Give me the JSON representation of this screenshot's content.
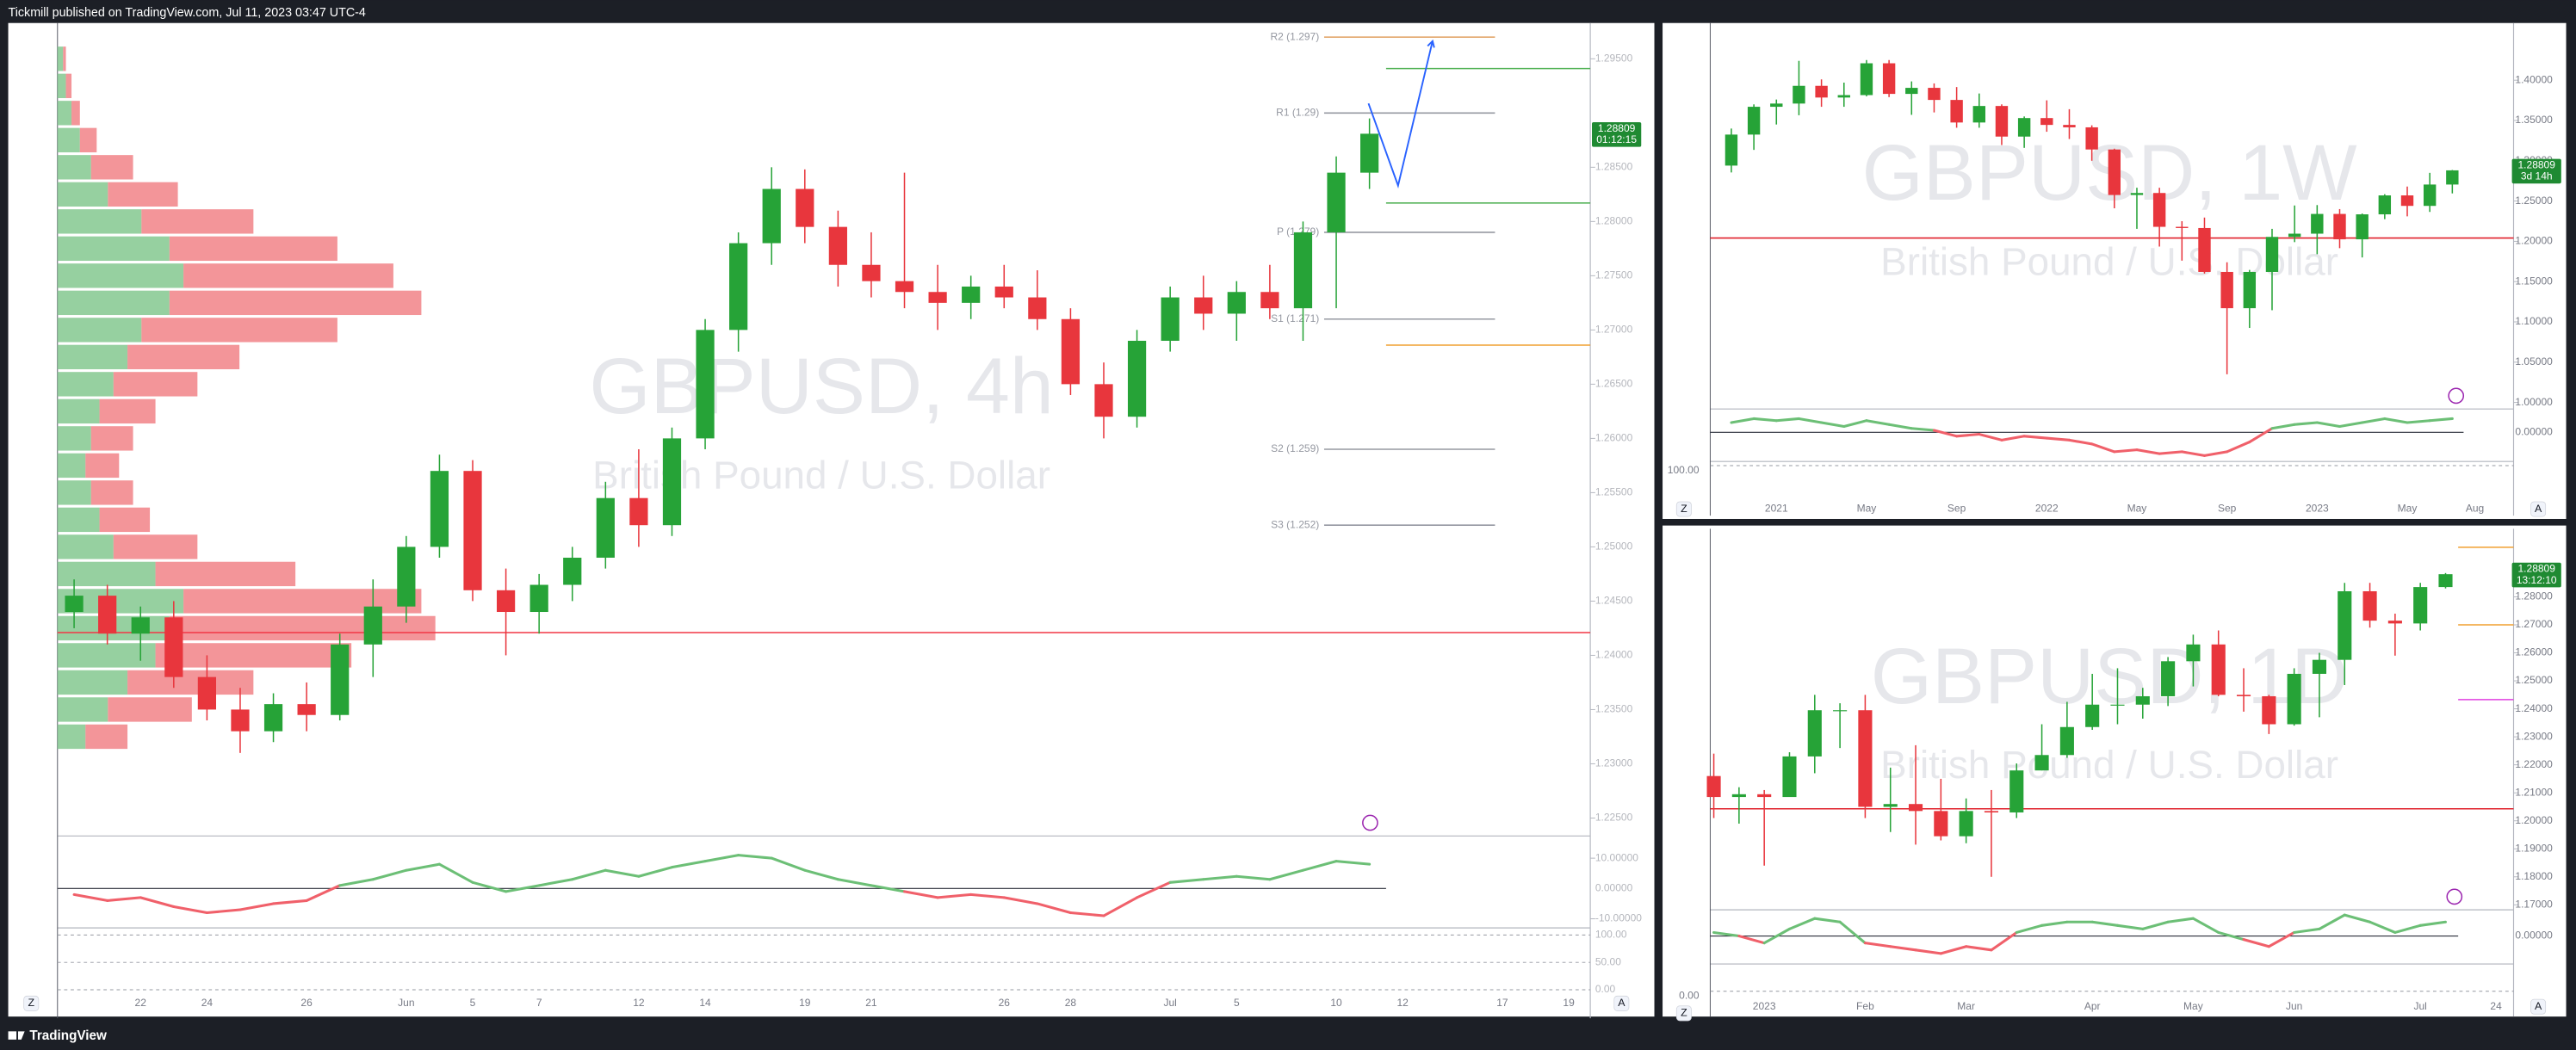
{
  "header": {
    "text": "Tickmill published on TradingView.com, Jul 11, 2023 03:47 UTC-4"
  },
  "footer": {
    "brand": "TradingView"
  },
  "chart_data": [
    {
      "type": "candlestick",
      "title": "GBPUSD, 4h",
      "subtitle": "British Pound / U.S. Dollar",
      "categories": [
        null,
        null,
        "22",
        null,
        "24",
        null,
        null,
        "26",
        null,
        null,
        "Jun",
        null,
        "5",
        null,
        "7",
        null,
        null,
        "12",
        null,
        "14",
        null,
        null,
        "19",
        null,
        "21",
        null,
        null,
        null,
        "26",
        null,
        "28",
        null,
        null,
        "Jul",
        null,
        "5",
        null,
        null,
        "10",
        null,
        "12",
        null,
        null,
        "17",
        null,
        "19"
      ],
      "open": [
        1.244,
        1.2455,
        1.242,
        1.2435,
        1.238,
        1.235,
        1.233,
        1.2355,
        1.2345,
        1.241,
        1.2445,
        1.25,
        1.257,
        1.246,
        1.244,
        1.2465,
        1.249,
        1.2545,
        1.252,
        1.26,
        1.27,
        1.278,
        1.283,
        1.2795,
        1.276,
        1.2745,
        1.2735,
        1.2725,
        1.274,
        1.273,
        1.271,
        1.265,
        1.262,
        1.269,
        1.273,
        1.2715,
        1.2735,
        1.272,
        1.279,
        1.2845,
        null,
        null,
        null,
        null,
        null,
        null
      ],
      "high": [
        1.247,
        1.2465,
        1.2445,
        1.245,
        1.24,
        1.237,
        1.2365,
        1.2375,
        1.242,
        1.247,
        1.251,
        1.2585,
        1.258,
        1.248,
        1.2475,
        1.25,
        1.256,
        1.259,
        1.261,
        1.271,
        1.279,
        1.285,
        1.2848,
        1.281,
        1.279,
        1.2845,
        1.276,
        1.275,
        1.276,
        1.2755,
        1.272,
        1.267,
        1.27,
        1.274,
        1.275,
        1.2745,
        1.276,
        1.28,
        1.286,
        1.2895,
        null,
        null,
        null,
        null,
        null,
        null
      ],
      "low": [
        1.2425,
        1.241,
        1.2395,
        1.237,
        1.234,
        1.231,
        1.232,
        1.233,
        1.234,
        1.238,
        1.243,
        1.249,
        1.245,
        1.24,
        1.242,
        1.245,
        1.248,
        1.25,
        1.251,
        1.259,
        1.268,
        1.276,
        1.278,
        1.274,
        1.273,
        1.272,
        1.27,
        1.271,
        1.272,
        1.27,
        1.264,
        1.26,
        1.261,
        1.268,
        1.27,
        1.269,
        1.271,
        1.269,
        1.272,
        1.283,
        null,
        null,
        null,
        null,
        null,
        null
      ],
      "close": [
        1.2455,
        1.242,
        1.2435,
        1.238,
        1.235,
        1.233,
        1.2355,
        1.2345,
        1.241,
        1.2445,
        1.25,
        1.257,
        1.246,
        1.244,
        1.2465,
        1.249,
        1.2545,
        1.252,
        1.26,
        1.27,
        1.278,
        1.283,
        1.2795,
        1.276,
        1.2745,
        1.2735,
        1.2725,
        1.274,
        1.273,
        1.271,
        1.265,
        1.262,
        1.269,
        1.273,
        1.2715,
        1.2735,
        1.272,
        1.279,
        1.2845,
        1.28809,
        null,
        null,
        null,
        null,
        null,
        null
      ],
      "up_color": "#26a337",
      "down_color": "#e8363d",
      "last_price_color": "#1f8a32",
      "countdown": "01:12:15",
      "ylim": [
        1.2235,
        1.2983
      ],
      "yticks": [
        {
          "value": 1.225,
          "label": "1.22500"
        },
        {
          "value": 1.23,
          "label": "1.23000"
        },
        {
          "value": 1.235,
          "label": "1.23500"
        },
        {
          "value": 1.24,
          "label": "1.24000"
        },
        {
          "value": 1.245,
          "label": "1.24500"
        },
        {
          "value": 1.25,
          "label": "1.25000"
        },
        {
          "value": 1.255,
          "label": "1.25500"
        },
        {
          "value": 1.26,
          "label": "1.26000"
        },
        {
          "value": 1.265,
          "label": "1.26500"
        },
        {
          "value": 1.27,
          "label": "1.27000"
        },
        {
          "value": 1.275,
          "label": "1.27500"
        },
        {
          "value": 1.28,
          "label": "1.28000"
        },
        {
          "value": 1.285,
          "label": "1.28500"
        },
        {
          "value": 1.295,
          "label": "1.29500"
        }
      ],
      "pivots": [
        {
          "label": "R2 (1.297)",
          "value": 1.297,
          "color": "#e0a060"
        },
        {
          "label": "R1 (1.29)",
          "value": 1.29,
          "color": "#9598a1"
        },
        {
          "label": "P (1.279)",
          "value": 1.279,
          "color": "#9598a1"
        },
        {
          "label": "S1 (1.271)",
          "value": 1.271,
          "color": "#9598a1"
        },
        {
          "label": "S2 (1.259)",
          "value": 1.259,
          "color": "#9598a1"
        },
        {
          "label": "S3 (1.252)",
          "value": 1.252,
          "color": "#9598a1"
        }
      ],
      "hlines": [
        {
          "value": 1.2421,
          "color": "#f23645",
          "span": "full"
        },
        {
          "value": 1.2941,
          "color": "#4caf50",
          "span": "right"
        },
        {
          "value": 1.2817,
          "color": "#4caf50",
          "span": "right"
        },
        {
          "value": 1.2686,
          "color": "#f0a030",
          "span": "right"
        }
      ],
      "volume_profile": {
        "prices": [
          1.295,
          1.2925,
          1.29,
          1.2875,
          1.285,
          1.2825,
          1.28,
          1.2775,
          1.275,
          1.2725,
          1.27,
          1.2675,
          1.265,
          1.2625,
          1.26,
          1.2575,
          1.255,
          1.2525,
          1.25,
          1.2475,
          1.245,
          1.2425,
          1.24,
          1.2375,
          1.235,
          1.2325
        ],
        "up": [
          2,
          3,
          5,
          8,
          12,
          18,
          30,
          40,
          45,
          40,
          30,
          25,
          20,
          15,
          12,
          10,
          12,
          15,
          20,
          35,
          45,
          40,
          35,
          25,
          18,
          10
        ],
        "down": [
          1,
          2,
          3,
          6,
          15,
          25,
          40,
          60,
          75,
          90,
          70,
          40,
          30,
          20,
          15,
          12,
          15,
          18,
          30,
          50,
          85,
          95,
          70,
          45,
          30,
          15
        ],
        "up_color": "#7cc488",
        "down_color": "#f07a7f"
      },
      "momentum": {
        "values": [
          -2,
          -4,
          -3,
          -6,
          -8,
          -7,
          -5,
          -4,
          1,
          3,
          6,
          8,
          2,
          -1,
          1,
          3,
          6,
          4,
          7,
          9,
          11,
          10,
          6,
          3,
          1,
          -1,
          -3,
          -2,
          -3,
          -5,
          -8,
          -9,
          -3,
          2,
          3,
          4,
          3,
          6,
          9,
          8,
          null,
          null,
          null,
          null,
          null,
          null
        ],
        "ylim": [
          -13,
          16.8
        ],
        "yticks": [
          {
            "value": 10,
            "label": "10.00000"
          },
          {
            "value": 0,
            "label": "0.00000"
          },
          {
            "value": -10,
            "label": "-10.00000"
          }
        ],
        "up_color": "#6cbf76",
        "down_color": "#f0606a"
      },
      "stoch_ylim": [
        -10,
        110
      ],
      "stoch_ticks": [
        {
          "value": 100,
          "label": "100.00"
        },
        {
          "value": 50,
          "label": "50.00"
        },
        {
          "value": 0,
          "label": "0.00"
        }
      ],
      "buttons": [
        "Z",
        "A"
      ]
    },
    {
      "type": "candlestick",
      "title": "GBPUSD, 1W",
      "subtitle": "British Pound / U.S. Dollar",
      "categories": [
        null,
        null,
        "2021",
        null,
        null,
        null,
        "May",
        null,
        null,
        null,
        "Sep",
        null,
        null,
        null,
        "2022",
        null,
        null,
        null,
        "May",
        null,
        null,
        null,
        "Sep",
        null,
        null,
        null,
        "2023",
        null,
        null,
        null,
        "May",
        null,
        null,
        "Aug",
        null
      ],
      "open": [
        1.294,
        1.3325,
        1.367,
        1.371,
        1.393,
        1.3785,
        1.3815,
        1.421,
        1.383,
        1.3905,
        1.3755,
        1.3475,
        1.368,
        1.33,
        1.353,
        1.3445,
        1.3415,
        1.314,
        1.2575,
        1.26,
        1.218,
        1.2165,
        1.162,
        1.117,
        1.162,
        1.2055,
        1.2095,
        1.234,
        1.2025,
        1.2335,
        1.257,
        1.244,
        1.2705,
        null,
        null
      ],
      "high": [
        1.34,
        1.37,
        1.376,
        1.424,
        1.401,
        1.397,
        1.425,
        1.425,
        1.3985,
        1.396,
        1.3915,
        1.3835,
        1.37,
        1.355,
        1.375,
        1.364,
        1.344,
        1.315,
        1.2665,
        1.2665,
        1.225,
        1.2295,
        1.174,
        1.1645,
        1.2155,
        1.2445,
        1.245,
        1.24,
        1.2345,
        1.2585,
        1.268,
        1.285,
        1.2885,
        null,
        null
      ],
      "low": [
        1.2855,
        1.3135,
        1.345,
        1.3565,
        1.367,
        1.367,
        1.38,
        1.379,
        1.357,
        1.36,
        1.341,
        1.341,
        1.3195,
        1.316,
        1.336,
        1.327,
        1.3,
        1.241,
        1.2155,
        1.1935,
        1.176,
        1.16,
        1.035,
        1.0925,
        1.1145,
        1.199,
        1.184,
        1.1915,
        1.18,
        1.2275,
        1.231,
        1.2365,
        1.2595,
        null,
        null
      ],
      "close": [
        1.3325,
        1.367,
        1.371,
        1.393,
        1.3785,
        1.3815,
        1.421,
        1.383,
        1.3905,
        1.3755,
        1.3475,
        1.368,
        1.33,
        1.353,
        1.3445,
        1.3415,
        1.314,
        1.2575,
        1.26,
        1.218,
        1.2165,
        1.162,
        1.117,
        1.162,
        1.2055,
        1.2095,
        1.234,
        1.2025,
        1.2335,
        1.257,
        1.244,
        1.2705,
        1.28809,
        null,
        null
      ],
      "up_color": "#26a337",
      "down_color": "#e8363d",
      "last_price_color": "#1f8a32",
      "countdown": "3d 14h",
      "ylim": [
        0.994,
        1.471
      ],
      "yticks": [
        {
          "value": 1.0,
          "label": "1.00000"
        },
        {
          "value": 1.05,
          "label": "1.05000"
        },
        {
          "value": 1.1,
          "label": "1.10000"
        },
        {
          "value": 1.15,
          "label": "1.15000"
        },
        {
          "value": 1.2,
          "label": "1.20000"
        },
        {
          "value": 1.25,
          "label": "1.25000"
        },
        {
          "value": 1.3,
          "label": "1.30000"
        },
        {
          "value": 1.35,
          "label": "1.35000"
        },
        {
          "value": 1.4,
          "label": "1.40000"
        }
      ],
      "hlines": [
        {
          "value": 1.2041,
          "color": "#e0202a",
          "span": "full"
        }
      ],
      "momentum": {
        "values": [
          0.05,
          0.07,
          0.06,
          0.07,
          0.05,
          0.03,
          0.06,
          0.04,
          0.02,
          0.01,
          -0.02,
          -0.01,
          -0.04,
          -0.02,
          -0.03,
          -0.04,
          -0.06,
          -0.1,
          -0.09,
          -0.11,
          -0.1,
          -0.12,
          -0.1,
          -0.05,
          0.02,
          0.04,
          0.05,
          0.03,
          0.05,
          0.07,
          0.05,
          0.06,
          0.07,
          null,
          null
        ],
        "ylim": [
          -0.15,
          0.12
        ],
        "yticks": [
          {
            "value": 0,
            "label": "0.00000"
          }
        ],
        "up_color": "#6cbf76",
        "down_color": "#f0606a"
      },
      "stoch_ylim": [
        -10,
        110
      ],
      "stoch_ticks": [
        {
          "value": 100,
          "label": "100.00"
        }
      ],
      "buttons": [
        "Z",
        "A"
      ]
    },
    {
      "type": "candlestick",
      "title": "GBPUSD, 1D",
      "subtitle": "British Pound / U.S. Dollar",
      "categories": [
        null,
        null,
        "2023",
        null,
        null,
        null,
        "Feb",
        null,
        null,
        null,
        "Mar",
        null,
        null,
        null,
        null,
        "Apr",
        null,
        null,
        null,
        "May",
        null,
        null,
        null,
        "Jun",
        null,
        null,
        null,
        null,
        "Jul",
        null,
        null,
        "24"
      ],
      "open": [
        1.216,
        1.2085,
        1.2095,
        1.2085,
        1.223,
        1.2395,
        1.2395,
        1.205,
        1.206,
        1.2035,
        1.1945,
        1.2035,
        1.203,
        1.218,
        1.2235,
        1.2335,
        1.2415,
        1.2415,
        1.2445,
        1.257,
        1.263,
        1.245,
        1.2445,
        1.2345,
        1.2525,
        1.2575,
        1.282,
        1.2715,
        1.2705,
        1.2835,
        null,
        null
      ],
      "high": [
        1.224,
        1.212,
        1.211,
        1.2245,
        1.245,
        1.242,
        1.245,
        1.219,
        1.227,
        1.215,
        1.208,
        1.211,
        1.2205,
        1.2345,
        1.2425,
        1.2525,
        1.2545,
        1.2475,
        1.2585,
        1.2665,
        1.268,
        1.2545,
        1.245,
        1.2545,
        1.26,
        1.285,
        1.285,
        1.274,
        1.285,
        1.2885,
        null,
        null
      ],
      "low": [
        1.201,
        1.199,
        1.184,
        1.209,
        1.217,
        1.226,
        1.201,
        1.196,
        1.1915,
        1.193,
        1.192,
        1.18,
        1.201,
        1.218,
        1.2225,
        1.2325,
        1.2345,
        1.2365,
        1.241,
        1.248,
        1.2445,
        1.239,
        1.231,
        1.234,
        1.237,
        1.2485,
        1.269,
        1.259,
        1.268,
        1.283,
        null,
        null
      ],
      "close": [
        1.2085,
        1.2095,
        1.2085,
        1.223,
        1.2395,
        1.2395,
        1.205,
        1.206,
        1.2035,
        1.1945,
        1.2035,
        1.203,
        1.218,
        1.2235,
        1.2335,
        1.2415,
        1.2415,
        1.2445,
        1.257,
        1.263,
        1.245,
        1.2445,
        1.2345,
        1.2525,
        1.2575,
        1.282,
        1.2715,
        1.2705,
        1.2835,
        1.28809,
        null,
        null
      ],
      "up_color": "#26a337",
      "down_color": "#e8363d",
      "last_price_color": "#1f8a32",
      "countdown": "13:12:10",
      "ylim": [
        1.1688,
        1.3043
      ],
      "yticks": [
        {
          "value": 1.17,
          "label": "1.17000"
        },
        {
          "value": 1.18,
          "label": "1.18000"
        },
        {
          "value": 1.19,
          "label": "1.19000"
        },
        {
          "value": 1.2,
          "label": "1.20000"
        },
        {
          "value": 1.21,
          "label": "1.21000"
        },
        {
          "value": 1.22,
          "label": "1.22000"
        },
        {
          "value": 1.23,
          "label": "1.23000"
        },
        {
          "value": 1.24,
          "label": "1.24000"
        },
        {
          "value": 1.25,
          "label": "1.25000"
        },
        {
          "value": 1.26,
          "label": "1.26000"
        },
        {
          "value": 1.27,
          "label": "1.27000"
        },
        {
          "value": 1.28,
          "label": "1.28000"
        }
      ],
      "hlines": [
        {
          "value": 1.2043,
          "color": "#e0202a",
          "span": "full"
        },
        {
          "value": 1.2977,
          "color": "#f0a030",
          "span": "right"
        },
        {
          "value": 1.27,
          "color": "#f0a030",
          "span": "right"
        },
        {
          "value": 1.2433,
          "color": "#e040e0",
          "span": "right"
        }
      ],
      "momentum": {
        "values": [
          0.005,
          0.0,
          -0.01,
          0.01,
          0.025,
          0.02,
          -0.01,
          -0.015,
          -0.02,
          -0.025,
          -0.015,
          -0.02,
          0.005,
          0.015,
          0.02,
          0.02,
          0.015,
          0.01,
          0.02,
          0.025,
          0.005,
          -0.005,
          -0.015,
          0.005,
          0.01,
          0.03,
          0.02,
          0.005,
          0.015,
          0.02,
          null,
          null
        ],
        "ylim": [
          -0.04,
          0.035
        ],
        "yticks": [
          {
            "value": 0,
            "label": "0.00000"
          }
        ],
        "up_color": "#6cbf76",
        "down_color": "#f0606a"
      },
      "stoch_ylim": [
        -10,
        110
      ],
      "stoch_ticks": [
        {
          "value": 0,
          "label": "0.00"
        }
      ],
      "buttons": [
        "Z",
        "A"
      ]
    }
  ]
}
